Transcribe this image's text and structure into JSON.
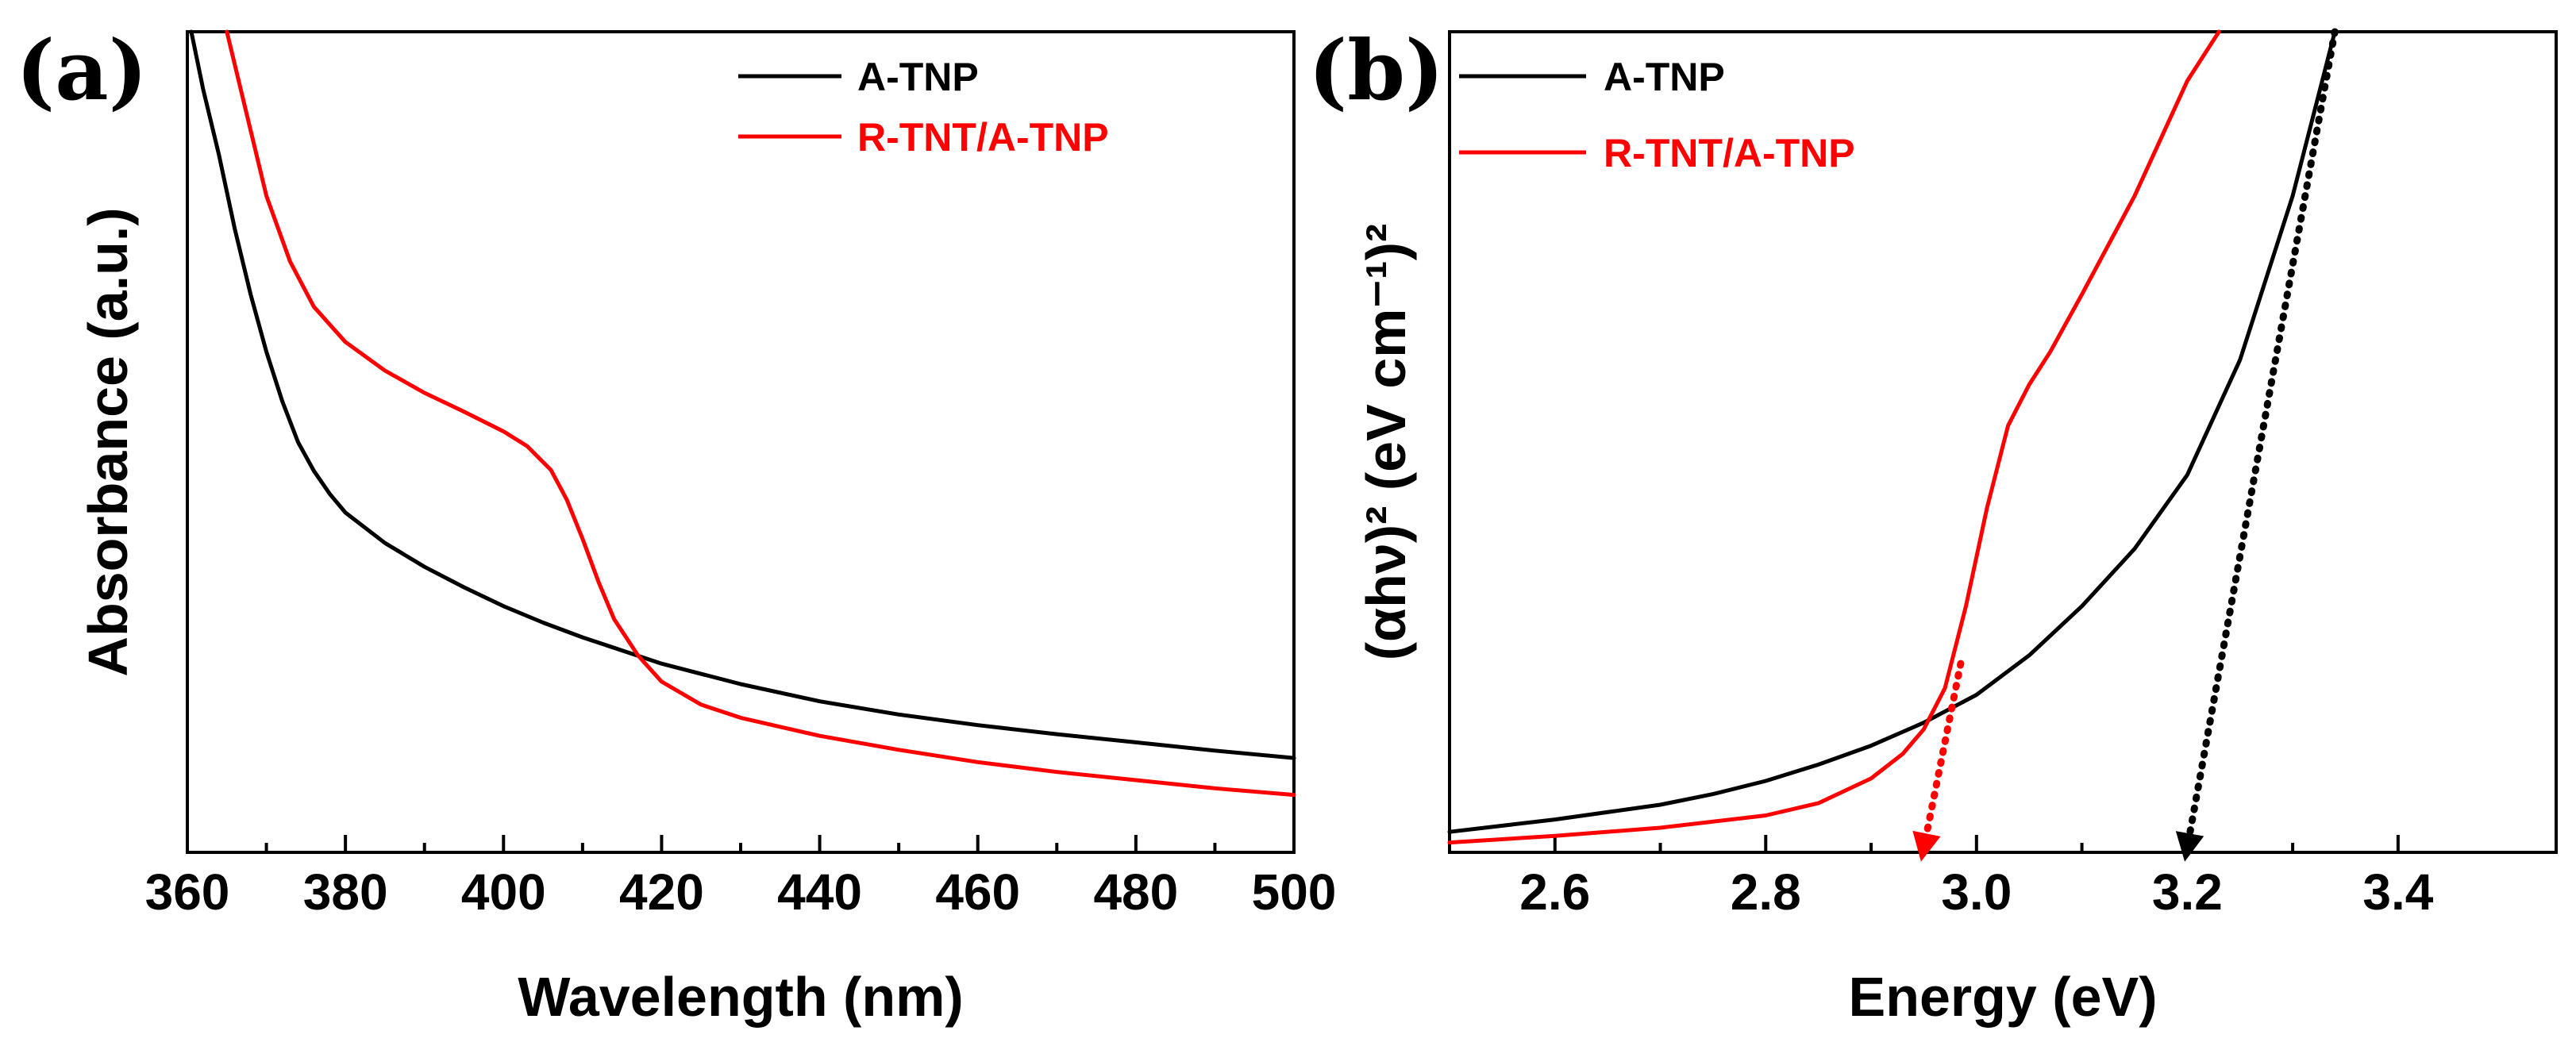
{
  "colors": {
    "black_series": "#000000",
    "red_series": "#ff0000"
  },
  "chart_data": [
    {
      "panel_label": "(a)",
      "type": "line",
      "title": "",
      "xlabel": "Wavelength (nm)",
      "ylabel": "Absorbance (a.u.)",
      "xlim": [
        360,
        500
      ],
      "ylim": [
        0,
        1
      ],
      "xticks": [
        360,
        380,
        400,
        420,
        440,
        460,
        480,
        500
      ],
      "yticks_shown": false,
      "grid": false,
      "legend": "top-right",
      "series": [
        {
          "name": "A-TNP",
          "color": "#000000",
          "x": [
            360.5,
            362,
            364,
            366,
            368,
            370,
            372,
            374,
            376,
            378,
            380,
            385,
            390,
            395,
            400,
            405,
            410,
            415,
            420,
            430,
            440,
            450,
            460,
            470,
            480,
            490,
            500
          ],
          "y": [
            1.0,
            0.93,
            0.85,
            0.76,
            0.68,
            0.61,
            0.55,
            0.5,
            0.465,
            0.437,
            0.414,
            0.377,
            0.348,
            0.323,
            0.3,
            0.28,
            0.262,
            0.246,
            0.23,
            0.205,
            0.184,
            0.168,
            0.155,
            0.144,
            0.134,
            0.124,
            0.115
          ]
        },
        {
          "name": "R-TNT/A-TNP",
          "color": "#ff0000",
          "x": [
            365,
            367,
            370,
            373,
            376,
            380,
            385,
            390,
            395,
            400,
            403,
            406,
            408,
            410,
            412,
            414,
            417,
            420,
            425,
            430,
            440,
            450,
            460,
            470,
            480,
            490,
            500
          ],
          "y": [
            1.0,
            0.92,
            0.8,
            0.72,
            0.665,
            0.622,
            0.587,
            0.56,
            0.537,
            0.513,
            0.495,
            0.466,
            0.43,
            0.382,
            0.33,
            0.284,
            0.24,
            0.208,
            0.18,
            0.164,
            0.142,
            0.125,
            0.11,
            0.098,
            0.088,
            0.078,
            0.07
          ]
        }
      ]
    },
    {
      "panel_label": "(b)",
      "type": "line",
      "title": "",
      "xlabel": "Energy (eV)",
      "ylabel": "(αhν)² (eV cm⁻¹)²",
      "xlim": [
        2.5,
        3.55
      ],
      "ylim": [
        0,
        1
      ],
      "xticks": [
        2.6,
        2.8,
        3.0,
        3.2,
        3.4
      ],
      "xtick_labels": [
        "2.6",
        "2.8",
        "3.0",
        "3.2",
        "3.4"
      ],
      "yticks_shown": false,
      "grid": false,
      "legend": "top-left",
      "series": [
        {
          "name": "A-TNP",
          "color": "#000000",
          "x": [
            2.5,
            2.6,
            2.7,
            2.75,
            2.8,
            2.85,
            2.9,
            2.95,
            3.0,
            3.05,
            3.1,
            3.15,
            3.2,
            3.25,
            3.3,
            3.34
          ],
          "y": [
            0.025,
            0.04,
            0.058,
            0.071,
            0.087,
            0.107,
            0.13,
            0.158,
            0.192,
            0.24,
            0.3,
            0.37,
            0.46,
            0.6,
            0.8,
            1.0
          ]
        },
        {
          "name": "R-TNT/A-TNP",
          "color": "#ff0000",
          "x": [
            2.5,
            2.6,
            2.7,
            2.8,
            2.85,
            2.9,
            2.93,
            2.95,
            2.97,
            2.99,
            3.01,
            3.03,
            3.05,
            3.07,
            3.1,
            3.15,
            3.2,
            3.23
          ],
          "y": [
            0.012,
            0.02,
            0.03,
            0.045,
            0.06,
            0.09,
            0.12,
            0.15,
            0.2,
            0.3,
            0.42,
            0.52,
            0.57,
            0.61,
            0.68,
            0.8,
            0.94,
            1.0
          ]
        }
      ],
      "annotations": [
        {
          "type": "tangent-arrow",
          "color": "#ff0000",
          "from": [
            2.985,
            0.23
          ],
          "to": [
            2.95,
            0.0
          ]
        },
        {
          "type": "tangent-arrow",
          "color": "#000000",
          "from": [
            3.34,
            1.0
          ],
          "to": [
            3.2,
            0.0
          ]
        }
      ]
    }
  ]
}
